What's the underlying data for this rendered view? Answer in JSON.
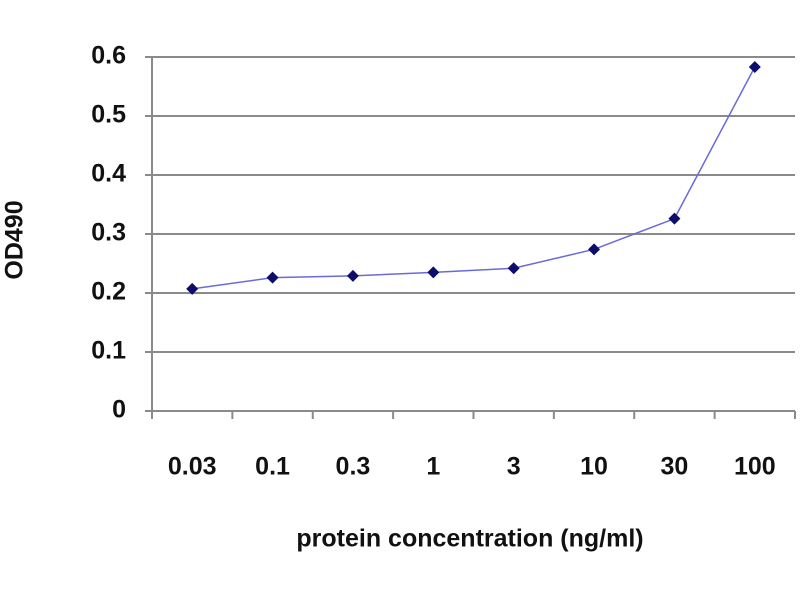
{
  "chart_data": {
    "type": "line",
    "x_label": "protein concentration (ng/ml)",
    "y_label": "OD490",
    "categories": [
      "0.03",
      "0.1",
      "0.3",
      "1",
      "3",
      "10",
      "30",
      "100"
    ],
    "series": [
      {
        "color": "#6a6ad8",
        "marker_color": "#0d0d6b",
        "values": [
          0.207,
          0.226,
          0.229,
          0.235,
          0.242,
          0.274,
          0.326,
          0.583
        ]
      }
    ],
    "ylim": [
      0,
      0.6
    ],
    "yticks": [
      0,
      0.1,
      0.2,
      0.3,
      0.4,
      0.5,
      0.6
    ],
    "grid": true
  }
}
